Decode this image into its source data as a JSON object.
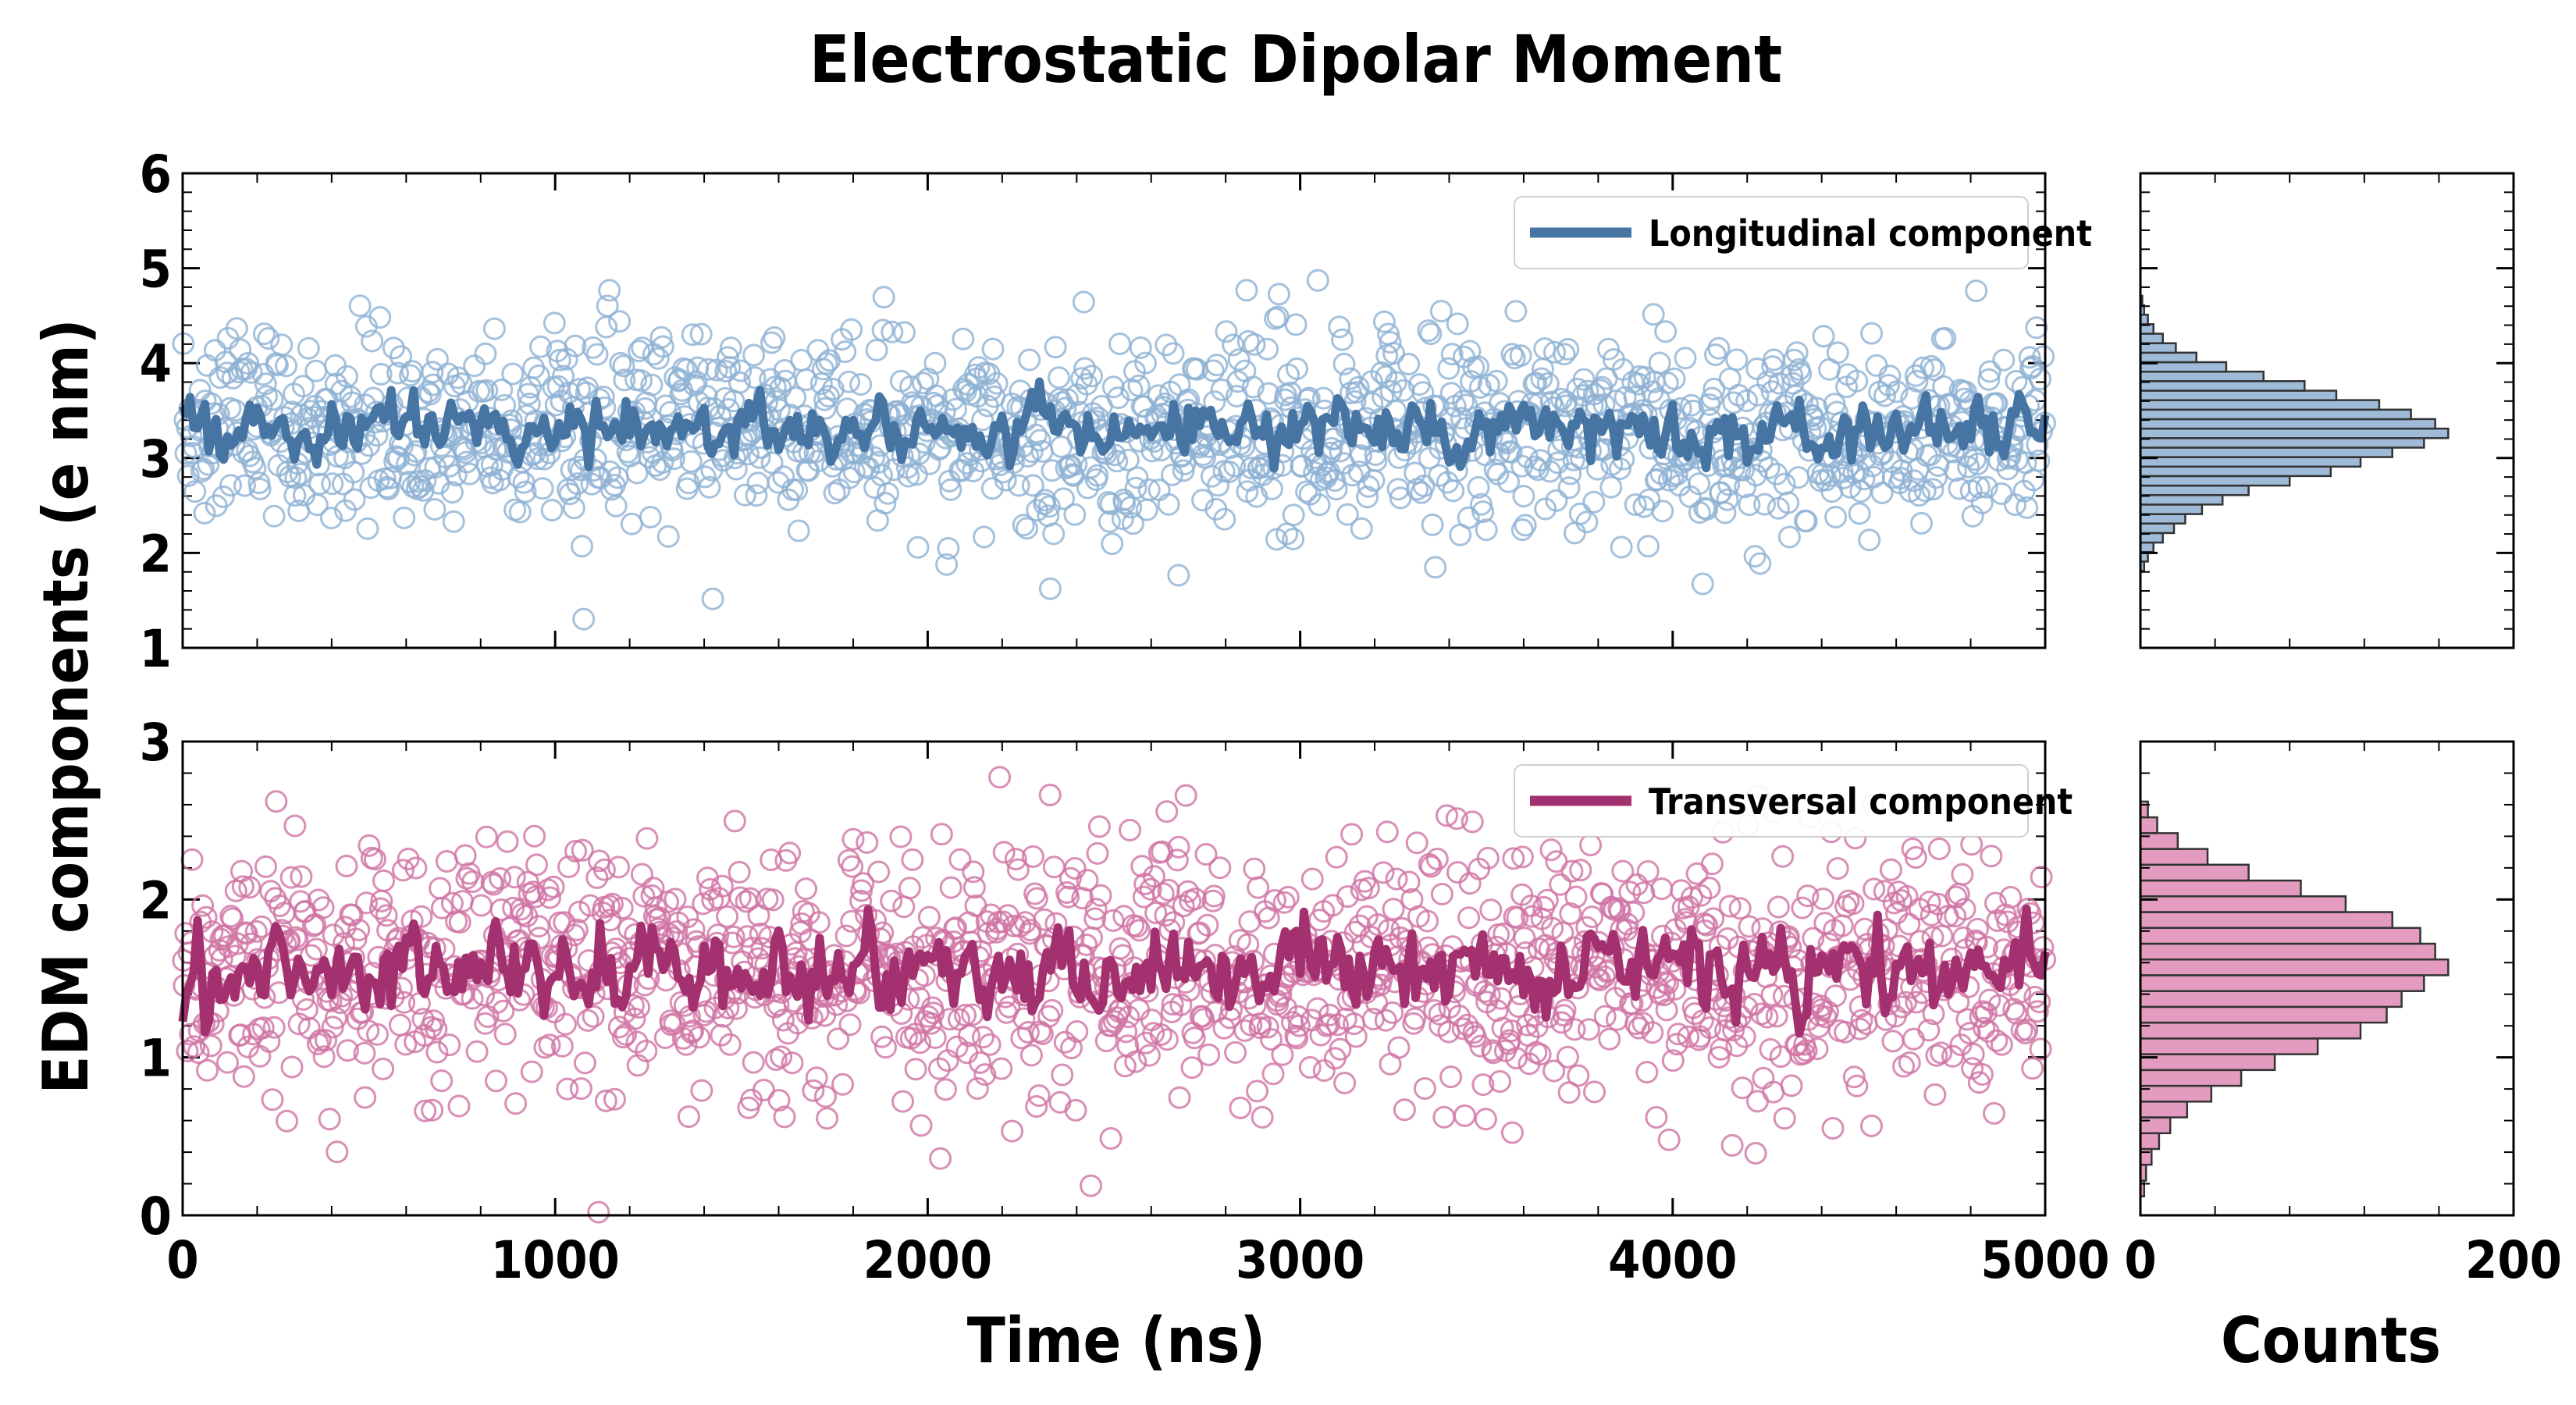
{
  "title": "Electrostatic Dipolar Moment",
  "ylabel": "EDM components (e nm)",
  "xlabel_time": "Time (ns)",
  "xlabel_counts": "Counts",
  "colors": {
    "longitudinal_line": "#4674a3",
    "longitudinal_scatter": "#8fb1d3",
    "longitudinal_hist": "#9fbbd8",
    "transversal_line": "#a3306f",
    "transversal_scatter": "#cf73a4",
    "transversal_hist": "#e39cc0"
  },
  "chart_data": [
    {
      "type": "scatter",
      "panel": "top-left",
      "series": [
        {
          "name": "Longitudinal component",
          "role": "raw samples",
          "style": "open circles",
          "n_points_approx": 1400,
          "mean": 3.3,
          "std": 0.5
        },
        {
          "name": "Longitudinal component",
          "role": "smoothed average",
          "style": "thick line",
          "mean": 3.3,
          "range": [
            2.8,
            3.9
          ]
        }
      ],
      "xlim": [
        0,
        5000
      ],
      "ylim": [
        1,
        6
      ],
      "yticks": [
        1,
        2,
        3,
        4,
        5,
        6
      ],
      "xticks": [
        0,
        1000,
        2000,
        3000,
        4000,
        5000
      ],
      "legend": "top-right"
    },
    {
      "type": "scatter",
      "panel": "bottom-left",
      "series": [
        {
          "name": "Transversal component",
          "role": "raw samples",
          "style": "open circles",
          "n_points_approx": 1400,
          "mean": 1.55,
          "std": 0.42
        },
        {
          "name": "Transversal component",
          "role": "smoothed average",
          "style": "thick line",
          "mean": 1.55,
          "range": [
            1.05,
            2.0
          ]
        }
      ],
      "xlim": [
        0,
        5000
      ],
      "ylim": [
        0,
        3
      ],
      "yticks": [
        0,
        1,
        2,
        3
      ],
      "xticks": [
        0,
        1000,
        2000,
        3000,
        4000,
        5000
      ],
      "xtick_labels": [
        "0",
        "1000",
        "2000",
        "3000",
        "4000",
        "5000"
      ],
      "legend": "top-right"
    },
    {
      "type": "bar",
      "panel": "top-right",
      "orientation": "horizontal",
      "series_name": "Longitudinal component",
      "bin_centers": [
        1.86,
        1.96,
        2.06,
        2.16,
        2.26,
        2.36,
        2.46,
        2.56,
        2.66,
        2.76,
        2.86,
        2.96,
        3.06,
        3.16,
        3.26,
        3.36,
        3.46,
        3.56,
        3.66,
        3.76,
        3.86,
        3.96,
        4.06,
        4.16,
        4.26,
        4.36,
        4.46,
        4.56,
        4.66
      ],
      "counts": [
        2,
        4,
        7,
        12,
        18,
        24,
        33,
        44,
        58,
        80,
        102,
        118,
        135,
        152,
        165,
        158,
        145,
        128,
        105,
        88,
        66,
        46,
        30,
        19,
        12,
        7,
        4,
        2,
        1
      ],
      "xlim": [
        0,
        200
      ],
      "xticks": [
        0,
        200
      ],
      "ylim": [
        1,
        6
      ]
    },
    {
      "type": "bar",
      "panel": "bottom-right",
      "orientation": "horizontal",
      "series_name": "Transversal component",
      "bin_centers": [
        0.17,
        0.27,
        0.37,
        0.47,
        0.57,
        0.67,
        0.77,
        0.87,
        0.97,
        1.07,
        1.17,
        1.27,
        1.37,
        1.47,
        1.57,
        1.67,
        1.77,
        1.87,
        1.97,
        2.07,
        2.17,
        2.27,
        2.37,
        2.47,
        2.57
      ],
      "counts": [
        2,
        3,
        6,
        10,
        16,
        25,
        38,
        54,
        72,
        95,
        118,
        132,
        140,
        152,
        165,
        158,
        150,
        135,
        110,
        86,
        58,
        36,
        20,
        9,
        4
      ],
      "xlim": [
        0,
        200
      ],
      "xticks": [
        0,
        200
      ],
      "xtick_labels": [
        "0",
        "200"
      ],
      "ylim": [
        0,
        3
      ]
    }
  ]
}
